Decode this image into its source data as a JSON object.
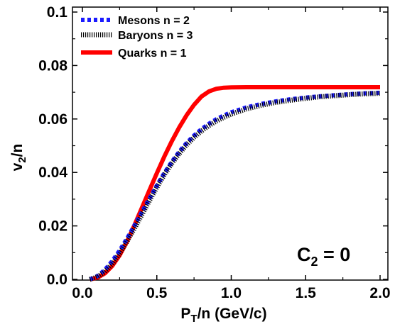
{
  "chart_data": {
    "type": "line",
    "xlabel": "P_T/n (GeV/c)",
    "ylabel": "v_2/n",
    "xlim": [
      0,
      2.0
    ],
    "ylim": [
      0,
      0.1
    ],
    "x_ticks": [
      "0.0",
      "0.5",
      "1.0",
      "1.5",
      "2.0"
    ],
    "y_ticks": [
      "0.0",
      "0.02",
      "0.04",
      "0.06",
      "0.08",
      "0.1"
    ],
    "x_tick_values": [
      0,
      0.5,
      1.0,
      1.5,
      2.0
    ],
    "y_tick_values": [
      0,
      0.02,
      0.04,
      0.06,
      0.08,
      0.1
    ],
    "grid": false,
    "legend_position": "top-left",
    "annotation": {
      "main": "C",
      "sub": "2",
      "tail": " = 0"
    },
    "series": [
      {
        "name": "Mesons n = 2",
        "color": "#1a1aff",
        "style": "dotted-thick",
        "x": [
          0.05,
          0.1,
          0.15,
          0.2,
          0.25,
          0.3,
          0.35,
          0.4,
          0.45,
          0.5,
          0.55,
          0.6,
          0.65,
          0.7,
          0.75,
          0.8,
          0.85,
          0.9,
          0.95,
          1.0,
          1.1,
          1.2,
          1.3,
          1.4,
          1.5,
          1.6,
          1.7,
          1.8,
          1.9,
          2.0
        ],
        "y": [
          0.0,
          0.0012,
          0.0035,
          0.0068,
          0.0108,
          0.0153,
          0.0202,
          0.0252,
          0.0302,
          0.0351,
          0.0397,
          0.0439,
          0.0477,
          0.051,
          0.0538,
          0.0562,
          0.0582,
          0.0599,
          0.0613,
          0.0625,
          0.0643,
          0.0656,
          0.0666,
          0.0674,
          0.068,
          0.0685,
          0.0689,
          0.0693,
          0.0696,
          0.0698
        ]
      },
      {
        "name": "Baryons n = 3",
        "color": "#000000",
        "style": "hatched",
        "x": [
          0.05,
          0.1,
          0.15,
          0.2,
          0.25,
          0.3,
          0.35,
          0.4,
          0.45,
          0.5,
          0.55,
          0.6,
          0.65,
          0.7,
          0.75,
          0.8,
          0.85,
          0.9,
          0.95,
          1.0,
          1.1,
          1.2,
          1.3,
          1.4,
          1.5,
          1.6,
          1.7,
          1.8,
          1.9,
          2.0
        ],
        "y": [
          0.0,
          0.0009,
          0.0028,
          0.0058,
          0.0097,
          0.0142,
          0.0191,
          0.0242,
          0.0294,
          0.0344,
          0.0391,
          0.0433,
          0.047,
          0.0503,
          0.0531,
          0.0555,
          0.0575,
          0.0592,
          0.0606,
          0.0618,
          0.0637,
          0.0651,
          0.0662,
          0.067,
          0.0677,
          0.0683,
          0.0687,
          0.0691,
          0.0694,
          0.0696
        ]
      },
      {
        "name": "Quarks n = 1",
        "color": "#ff0000",
        "style": "solid-thick",
        "x": [
          0.05,
          0.1,
          0.15,
          0.2,
          0.25,
          0.3,
          0.35,
          0.4,
          0.45,
          0.5,
          0.55,
          0.6,
          0.65,
          0.7,
          0.75,
          0.8,
          0.85,
          0.9,
          0.95,
          1.0,
          1.1,
          1.2,
          1.3,
          1.4,
          1.5,
          1.6,
          1.7,
          1.8,
          1.9,
          2.0
        ],
        "y": [
          0.0,
          0.0006,
          0.0022,
          0.005,
          0.009,
          0.0142,
          0.0203,
          0.0268,
          0.0333,
          0.0397,
          0.0459,
          0.0516,
          0.0568,
          0.0614,
          0.0653,
          0.0684,
          0.0703,
          0.0713,
          0.0717,
          0.0718,
          0.0719,
          0.0719,
          0.0719,
          0.0719,
          0.0719,
          0.0719,
          0.0719,
          0.0719,
          0.0719,
          0.0719
        ]
      }
    ]
  }
}
